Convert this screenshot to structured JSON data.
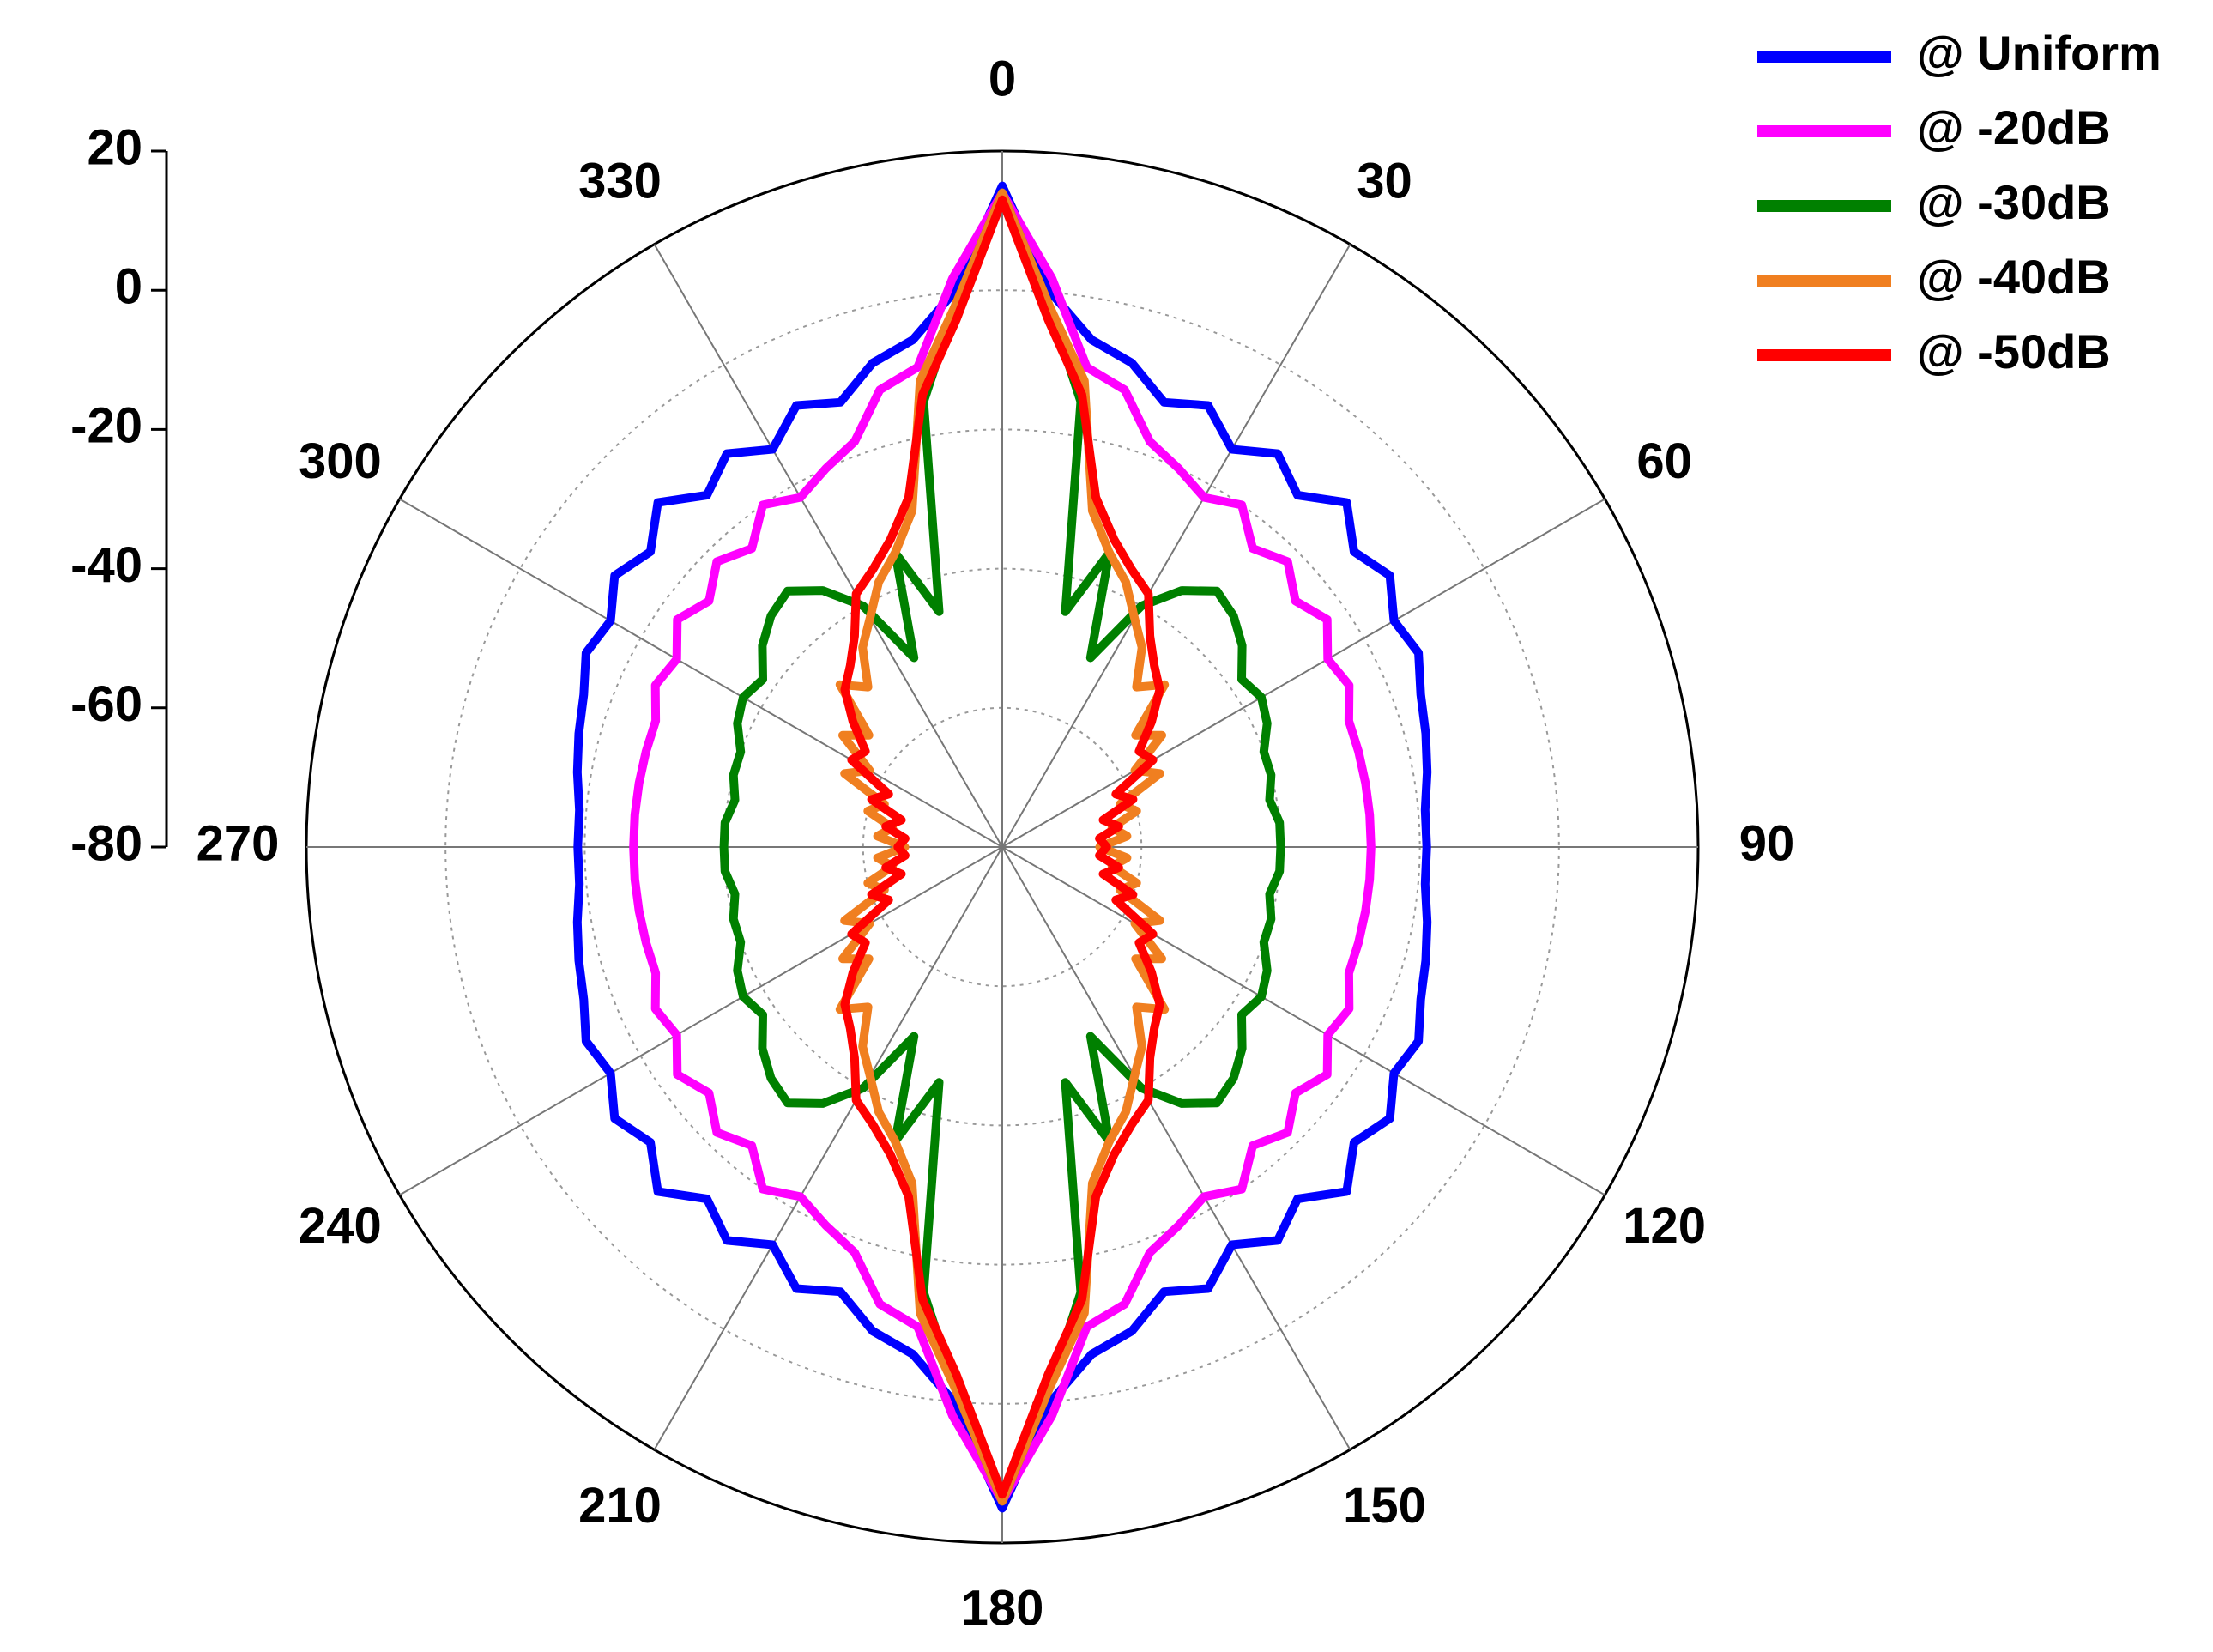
{
  "chart_data": {
    "type": "polar",
    "rlim": [
      -80,
      20
    ],
    "rticks": [
      20,
      0,
      -20,
      -40,
      -60,
      -80
    ],
    "thetaticks": [
      0,
      30,
      60,
      90,
      120,
      150,
      180,
      210,
      240,
      270,
      300,
      330
    ],
    "grid": true,
    "legend": "upper right",
    "x": [
      0,
      5,
      10,
      15,
      20,
      25,
      30,
      35,
      40,
      45,
      50,
      55,
      60,
      65,
      70,
      75,
      80,
      85,
      90,
      95,
      100,
      105,
      110,
      115,
      120,
      125,
      130,
      135,
      140,
      145,
      150,
      155,
      160,
      165,
      170,
      175,
      180,
      185,
      190,
      195,
      200,
      205,
      210,
      215,
      220,
      225,
      230,
      235,
      240,
      245,
      250,
      255,
      260,
      265,
      270,
      275,
      280,
      285,
      290,
      295,
      300,
      305,
      310,
      315,
      320,
      325,
      330,
      335,
      340,
      345,
      350,
      355
    ],
    "series": [
      {
        "name": "@ Uniform",
        "color": "#0000ff",
        "values": [
          15,
          0,
          -6,
          -8,
          -12,
          -10,
          -14,
          -11,
          -14,
          -10,
          -14,
          -12,
          -15,
          -14,
          -16,
          -17,
          -18,
          -19,
          -19,
          -19,
          -18,
          -17,
          -16,
          -14,
          -15,
          -12,
          -14,
          -10,
          -14,
          -11,
          -14,
          -10,
          -12,
          -8,
          -6,
          0,
          15,
          0,
          -6,
          -8,
          -12,
          -10,
          -14,
          -11,
          -14,
          -10,
          -14,
          -12,
          -15,
          -14,
          -16,
          -17,
          -18,
          -19,
          -19,
          -19,
          -18,
          -17,
          -16,
          -14,
          -15,
          -12,
          -14,
          -10,
          -14,
          -11,
          -14,
          -10,
          -12,
          -8,
          -6,
          0
        ]
      },
      {
        "name": "@ -20dB",
        "color": "#ff00ff",
        "values": [
          14,
          2,
          -10,
          -12,
          -18,
          -20,
          -22,
          -20,
          -24,
          -22,
          -25,
          -23,
          -26,
          -25,
          -27,
          -27,
          -27,
          -27,
          -27,
          -27,
          -27,
          -27,
          -27,
          -25,
          -26,
          -23,
          -25,
          -22,
          -24,
          -20,
          -22,
          -20,
          -18,
          -12,
          -10,
          2,
          14,
          2,
          -10,
          -12,
          -18,
          -20,
          -22,
          -20,
          -24,
          -22,
          -25,
          -23,
          -26,
          -25,
          -27,
          -27,
          -27,
          -27,
          -27,
          -27,
          -27,
          -27,
          -27,
          -25,
          -26,
          -23,
          -25,
          -22,
          -24,
          -20,
          -22,
          -20,
          -18,
          -12,
          -10,
          2
        ]
      },
      {
        "name": "@ -30dB",
        "color": "#008000",
        "values": [
          14,
          -2,
          -15,
          -45,
          -35,
          -50,
          -40,
          -35,
          -32,
          -33,
          -35,
          -38,
          -37,
          -38,
          -40,
          -40,
          -41,
          -40,
          -40,
          -40,
          -41,
          -40,
          -40,
          -38,
          -37,
          -38,
          -35,
          -33,
          -32,
          -35,
          -40,
          -50,
          -35,
          -45,
          -15,
          -2,
          14,
          -2,
          -15,
          -45,
          -35,
          -50,
          -40,
          -35,
          -32,
          -33,
          -35,
          -38,
          -37,
          -38,
          -40,
          -40,
          -41,
          -40,
          -40,
          -40,
          -41,
          -40,
          -40,
          -38,
          -37,
          -38,
          -35,
          -33,
          -32,
          -35,
          -40,
          -50,
          -35,
          -45,
          -15,
          -2
        ]
      },
      {
        "name": "@ -40dB",
        "color": "#f07f20",
        "values": [
          14,
          -2,
          -12,
          -30,
          -35,
          -38,
          -42,
          -45,
          -50,
          -47,
          -55,
          -52,
          -58,
          -55,
          -62,
          -60,
          -64,
          -62,
          -66,
          -62,
          -64,
          -60,
          -62,
          -55,
          -58,
          -52,
          -55,
          -47,
          -50,
          -45,
          -42,
          -38,
          -35,
          -30,
          -12,
          -2,
          14,
          -2,
          -12,
          -30,
          -35,
          -38,
          -42,
          -45,
          -50,
          -47,
          -55,
          -52,
          -58,
          -55,
          -62,
          -60,
          -64,
          -62,
          -66,
          -62,
          -64,
          -60,
          -62,
          -55,
          -58,
          -52,
          -55,
          -47,
          -50,
          -45,
          -42,
          -38,
          -35,
          -30,
          -12,
          -2
        ]
      },
      {
        "name": "@ -50dB",
        "color": "#ff0000",
        "values": [
          13,
          -4,
          -14,
          -28,
          -33,
          -36,
          -38,
          -43,
          -46,
          -48,
          -52,
          -56,
          -55,
          -62,
          -60,
          -65,
          -63,
          -66,
          -65,
          -66,
          -63,
          -65,
          -60,
          -62,
          -55,
          -56,
          -52,
          -48,
          -46,
          -43,
          -38,
          -36,
          -33,
          -28,
          -14,
          -4,
          13,
          -4,
          -14,
          -28,
          -33,
          -36,
          -38,
          -43,
          -46,
          -48,
          -52,
          -56,
          -55,
          -62,
          -60,
          -65,
          -63,
          -66,
          -65,
          -66,
          -63,
          -65,
          -60,
          -62,
          -55,
          -56,
          -52,
          -48,
          -46,
          -43,
          -38,
          -36,
          -33,
          -28,
          -14,
          -4
        ]
      }
    ]
  }
}
